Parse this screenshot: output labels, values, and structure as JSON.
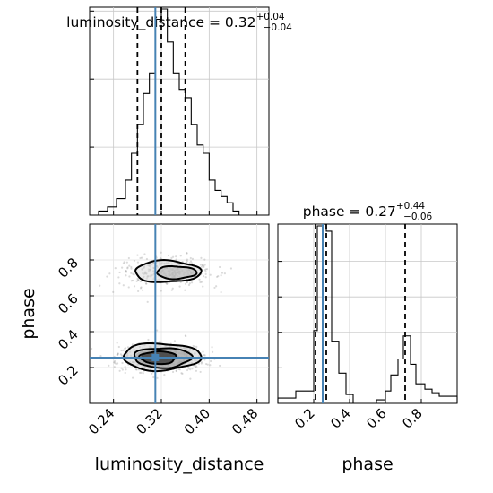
{
  "colors": {
    "truth": "#4682b4",
    "hist": "#000000",
    "grid": "#c8c8c8",
    "points": "#999999",
    "density": "#555555"
  },
  "chart_data": [
    {
      "type": "histogram",
      "title_main": "luminosity_distance = 0.32",
      "title_sup": "+0.04",
      "title_sub": "−0.04",
      "xlim": [
        0.2,
        0.5
      ],
      "ylim": [
        0,
        1.0
      ],
      "y_tick_values": [
        0.33,
        0.66,
        0.99
      ],
      "grid": true,
      "bin_edges": [
        0.2,
        0.215,
        0.23,
        0.245,
        0.26,
        0.27,
        0.28,
        0.29,
        0.3,
        0.31,
        0.32,
        0.33,
        0.34,
        0.35,
        0.36,
        0.37,
        0.38,
        0.39,
        0.4,
        0.41,
        0.42,
        0.43,
        0.44,
        0.45,
        0.465
      ],
      "heights": [
        0.0,
        0.02,
        0.04,
        0.08,
        0.17,
        0.3,
        0.44,
        0.59,
        0.69,
        0.95,
        1.0,
        0.84,
        0.69,
        0.61,
        0.57,
        0.44,
        0.34,
        0.3,
        0.17,
        0.12,
        0.09,
        0.06,
        0.02,
        0.0
      ],
      "quantiles": [
        0.28,
        0.32,
        0.36
      ],
      "truth": 0.31
    },
    {
      "type": "scatter",
      "xlim": [
        0.2,
        0.5
      ],
      "ylim": [
        0.0,
        1.0
      ],
      "xlabel": "luminosity_distance",
      "ylabel": "phase",
      "x_ticks": [
        0.24,
        0.32,
        0.4,
        0.48
      ],
      "x_tick_labels": [
        "0.24",
        "0.32",
        "0.40",
        "0.48"
      ],
      "y_ticks": [
        0.2,
        0.4,
        0.6,
        0.8
      ],
      "y_tick_labels": [
        "0.2",
        "0.4",
        "0.6",
        "0.8"
      ],
      "modes": [
        {
          "x": 0.33,
          "y": 0.735,
          "sx": 0.04,
          "sy": 0.045,
          "weight": 0.4
        },
        {
          "x": 0.32,
          "y": 0.255,
          "sx": 0.035,
          "sy": 0.04,
          "weight": 0.6
        }
      ],
      "contours_upper": [
        {
          "cx": 0.33,
          "cy": 0.735,
          "rx": 0.055,
          "ry": 0.06
        },
        {
          "cx": 0.345,
          "cy": 0.73,
          "rx": 0.033,
          "ry": 0.035
        }
      ],
      "contours_lower": [
        {
          "cx": 0.32,
          "cy": 0.26,
          "rx": 0.065,
          "ry": 0.075
        },
        {
          "cx": 0.322,
          "cy": 0.255,
          "rx": 0.048,
          "ry": 0.055
        },
        {
          "cx": 0.315,
          "cy": 0.255,
          "rx": 0.03,
          "ry": 0.035
        }
      ],
      "truth": {
        "x": 0.31,
        "y": 0.255
      }
    },
    {
      "type": "histogram",
      "title_main": "phase = 0.27",
      "title_sup": "+0.44",
      "title_sub": "−0.06",
      "xlim": [
        0.0,
        1.0
      ],
      "ylim": [
        0,
        1.0
      ],
      "x_ticks": [
        0.2,
        0.4,
        0.6,
        0.8
      ],
      "x_tick_labels": [
        "0.2",
        "0.4",
        "0.6",
        "0.8"
      ],
      "xlabel": "phase",
      "y_tick_values": [
        0.2,
        0.4,
        0.6,
        0.8
      ],
      "grid": true,
      "bin_edges": [
        0.0,
        0.1,
        0.16,
        0.2,
        0.22,
        0.25,
        0.27,
        0.3,
        0.34,
        0.38,
        0.42,
        0.48,
        0.55,
        0.6,
        0.63,
        0.67,
        0.7,
        0.74,
        0.77,
        0.82,
        0.86,
        0.9,
        0.95,
        1.0
      ],
      "heights": [
        0.03,
        0.07,
        0.07,
        0.41,
        1.0,
        1.01,
        0.97,
        0.35,
        0.17,
        0.05,
        0.0,
        0.0,
        0.02,
        0.07,
        0.16,
        0.25,
        0.38,
        0.22,
        0.11,
        0.08,
        0.06,
        0.04,
        0.04
      ],
      "quantiles": [
        0.21,
        0.27,
        0.71
      ],
      "truth": 0.25
    }
  ]
}
